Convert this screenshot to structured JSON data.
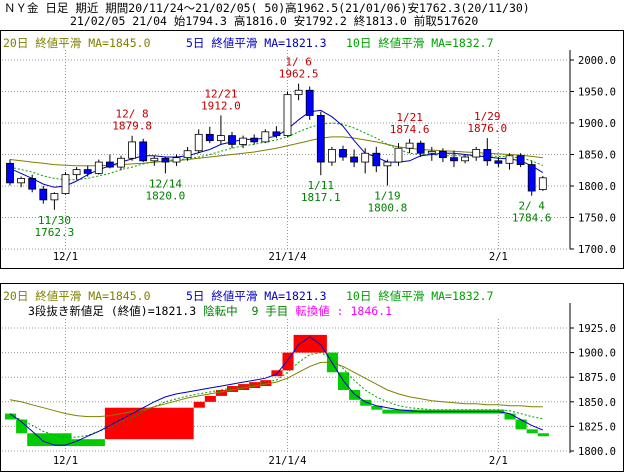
{
  "header": {
    "line1": "ＮＹ金 日足 期近 期間20/11/24～21/02/05( 50)高1962.5(21/01/06)安1762.3(20/11/30)",
    "line2": "21/02/05 21/04 始1794.3 高1816.0 安1792.2 終1813.0 前取517620"
  },
  "colors": {
    "ma20": "#808000",
    "ma5": "#0000c0",
    "ma10": "#00a000",
    "up": "#ffffff",
    "down": "#0000ff",
    "red_label": "#c00000",
    "green_label": "#008000",
    "brick_up": "#ff0000",
    "brick_down": "#00cc00",
    "magenta": "#ff00ff"
  },
  "top_legend": {
    "ma20": "20日 終値平滑 MA=1845.0",
    "ma5": "5日 終値平滑 MA=1821.3",
    "ma10": "10日 終値平滑 MA=1832.7"
  },
  "bottom_legend": {
    "ma20": "20日 終値平滑 MA=1845.0",
    "ma5": "5日 終値平滑 MA=1821.3",
    "ma10": "10日 終値平滑 MA=1832.7",
    "info_a": "3段抜き新値足 (終値)=1821.3 ",
    "info_b": "陰転中",
    "info_c": "  9 手目 ",
    "info_d": "転換値 : 1846.1"
  },
  "chart_data": [
    {
      "type": "candlestick",
      "ylim": [
        1700,
        2000
      ],
      "y_ticks": [
        "2000.0",
        "1950.0",
        "1900.0",
        "1850.0",
        "1800.0",
        "1750.0",
        "1700.0"
      ],
      "x_ticks": [
        {
          "label": "12/1",
          "index": 5
        },
        {
          "label": "21/1/4",
          "index": 25
        },
        {
          "label": "2/1",
          "index": 44
        }
      ],
      "candles": [
        [
          1836,
          1842,
          1801,
          1805
        ],
        [
          1805,
          1815,
          1798,
          1812
        ],
        [
          1812,
          1818,
          1790,
          1795
        ],
        [
          1795,
          1800,
          1772,
          1778
        ],
        [
          1778,
          1790,
          1762.3,
          1788
        ],
        [
          1788,
          1822,
          1786,
          1818
        ],
        [
          1818,
          1830,
          1810,
          1826
        ],
        [
          1826,
          1832,
          1815,
          1820
        ],
        [
          1820,
          1842,
          1818,
          1838
        ],
        [
          1838,
          1850,
          1828,
          1830
        ],
        [
          1830,
          1848,
          1825,
          1844
        ],
        [
          1844,
          1879.8,
          1840,
          1870
        ],
        [
          1870,
          1875,
          1838,
          1840
        ],
        [
          1840,
          1848,
          1832,
          1844
        ],
        [
          1844,
          1846,
          1820,
          1838
        ],
        [
          1838,
          1850,
          1832,
          1845
        ],
        [
          1845,
          1862,
          1840,
          1856
        ],
        [
          1856,
          1890,
          1852,
          1882
        ],
        [
          1882,
          1894,
          1868,
          1872
        ],
        [
          1872,
          1912,
          1866,
          1880
        ],
        [
          1880,
          1886,
          1860,
          1866
        ],
        [
          1866,
          1880,
          1860,
          1876
        ],
        [
          1876,
          1882,
          1866,
          1870
        ],
        [
          1870,
          1890,
          1868,
          1886
        ],
        [
          1886,
          1895,
          1876,
          1880
        ],
        [
          1880,
          1950,
          1878,
          1945
        ],
        [
          1945,
          1962.5,
          1936,
          1952
        ],
        [
          1952,
          1958,
          1905,
          1912
        ],
        [
          1912,
          1918,
          1817.1,
          1838
        ],
        [
          1838,
          1862,
          1832,
          1858
        ],
        [
          1858,
          1864,
          1840,
          1846
        ],
        [
          1846,
          1858,
          1830,
          1838
        ],
        [
          1838,
          1860,
          1820,
          1852
        ],
        [
          1852,
          1862,
          1822,
          1832
        ],
        [
          1832,
          1842,
          1800.8,
          1838
        ],
        [
          1838,
          1868,
          1832,
          1860
        ],
        [
          1860,
          1874.6,
          1852,
          1868
        ],
        [
          1868,
          1872,
          1846,
          1852
        ],
        [
          1852,
          1862,
          1840,
          1855
        ],
        [
          1855,
          1860,
          1838,
          1845
        ],
        [
          1845,
          1856,
          1830,
          1840
        ],
        [
          1840,
          1850,
          1836,
          1846
        ],
        [
          1846,
          1862,
          1840,
          1858
        ],
        [
          1858,
          1876.0,
          1832,
          1840
        ],
        [
          1840,
          1846,
          1830,
          1836
        ],
        [
          1836,
          1852,
          1826,
          1848
        ],
        [
          1848,
          1852,
          1830,
          1834
        ],
        [
          1834,
          1840,
          1784.6,
          1792
        ],
        [
          1794.3,
          1816.0,
          1792.2,
          1813.0
        ]
      ],
      "ma5": [
        1828,
        1820,
        1812,
        1803,
        1798,
        1800,
        1808,
        1818,
        1826,
        1832,
        1838,
        1843,
        1848,
        1848,
        1846,
        1846,
        1848,
        1853,
        1858,
        1866,
        1870,
        1874,
        1874,
        1876,
        1879,
        1890,
        1905,
        1918,
        1920,
        1910,
        1895,
        1872,
        1852,
        1846,
        1838,
        1838,
        1840,
        1848,
        1850,
        1852,
        1852,
        1850,
        1848,
        1846,
        1844,
        1843,
        1840,
        1832,
        1821.3
      ],
      "ma10": [
        1830,
        1826,
        1822,
        1816,
        1812,
        1810,
        1810,
        1812,
        1816,
        1820,
        1826,
        1830,
        1835,
        1838,
        1840,
        1842,
        1843,
        1846,
        1850,
        1855,
        1860,
        1864,
        1866,
        1870,
        1873,
        1878,
        1886,
        1893,
        1898,
        1900,
        1898,
        1892,
        1884,
        1876,
        1866,
        1858,
        1852,
        1850,
        1850,
        1848,
        1848,
        1848,
        1848,
        1848,
        1847,
        1846,
        1845,
        1840,
        1832.7
      ],
      "ma20": [
        1842,
        1840,
        1838,
        1836,
        1834,
        1833,
        1832,
        1832,
        1832,
        1833,
        1834,
        1835,
        1836,
        1838,
        1839,
        1840,
        1842,
        1844,
        1846,
        1848,
        1850,
        1852,
        1854,
        1857,
        1860,
        1864,
        1868,
        1872,
        1876,
        1878,
        1878,
        1876,
        1873,
        1870,
        1866,
        1862,
        1860,
        1858,
        1857,
        1856,
        1855,
        1854,
        1853,
        1852,
        1851,
        1850,
        1849,
        1847,
        1845.0
      ],
      "annotations": [
        {
          "label": "1/ 6",
          "value": "1962.5",
          "index": 26,
          "kind": "high"
        },
        {
          "label": "12/21",
          "value": "1912.0",
          "index": 19,
          "kind": "high"
        },
        {
          "label": "12/ 8",
          "value": "1879.8",
          "index": 11,
          "kind": "high"
        },
        {
          "label": "1/21",
          "value": "1874.6",
          "index": 36,
          "kind": "high"
        },
        {
          "label": "1/29",
          "value": "1876.0",
          "index": 43,
          "kind": "high"
        },
        {
          "label": "11/30",
          "value": "1762.3",
          "index": 4,
          "kind": "low"
        },
        {
          "label": "12/14",
          "value": "1820.0",
          "index": 14,
          "kind": "low"
        },
        {
          "label": "1/11",
          "value": "1817.1",
          "index": 28,
          "kind": "low"
        },
        {
          "label": "1/19",
          "value": "1800.8",
          "index": 34,
          "kind": "low"
        },
        {
          "label": "2/ 4",
          "value": "1784.6",
          "index": 47,
          "kind": "low"
        }
      ]
    },
    {
      "type": "new_price_bricks",
      "ylim": [
        1795,
        1935
      ],
      "y_ticks": [
        "1925.0",
        "1900.0",
        "1875.0",
        "1850.0",
        "1825.0",
        "1800.0"
      ],
      "x_ticks": [
        {
          "label": "12/1",
          "index": 5
        },
        {
          "label": "21/1/4",
          "index": 25
        },
        {
          "label": "2/1",
          "index": 44
        }
      ],
      "bricks": [
        {
          "from": 0,
          "to": 1,
          "lo": 1832,
          "hi": 1838,
          "dir": "down"
        },
        {
          "from": 1,
          "to": 2,
          "lo": 1818,
          "hi": 1832,
          "dir": "down"
        },
        {
          "from": 2,
          "to": 6,
          "lo": 1805,
          "hi": 1818,
          "dir": "down"
        },
        {
          "from": 6,
          "to": 9,
          "lo": 1805,
          "hi": 1812,
          "dir": "down"
        },
        {
          "from": 9,
          "to": 17,
          "lo": 1812,
          "hi": 1844,
          "dir": "up"
        },
        {
          "from": 17,
          "to": 18,
          "lo": 1844,
          "hi": 1850,
          "dir": "up"
        },
        {
          "from": 18,
          "to": 19,
          "lo": 1850,
          "hi": 1856,
          "dir": "up"
        },
        {
          "from": 19,
          "to": 20,
          "lo": 1856,
          "hi": 1862,
          "dir": "up"
        },
        {
          "from": 20,
          "to": 21,
          "lo": 1860,
          "hi": 1866,
          "dir": "up"
        },
        {
          "from": 21,
          "to": 22,
          "lo": 1862,
          "hi": 1868,
          "dir": "up"
        },
        {
          "from": 22,
          "to": 23,
          "lo": 1864,
          "hi": 1870,
          "dir": "up"
        },
        {
          "from": 23,
          "to": 24,
          "lo": 1866,
          "hi": 1872,
          "dir": "up"
        },
        {
          "from": 24,
          "to": 25,
          "lo": 1876,
          "hi": 1882,
          "dir": "up"
        },
        {
          "from": 25,
          "to": 26,
          "lo": 1882,
          "hi": 1900,
          "dir": "up"
        },
        {
          "from": 26,
          "to": 29,
          "lo": 1900,
          "hi": 1918,
          "dir": "up"
        },
        {
          "from": 29,
          "to": 30,
          "lo": 1880,
          "hi": 1900,
          "dir": "down"
        },
        {
          "from": 30,
          "to": 31,
          "lo": 1862,
          "hi": 1880,
          "dir": "down"
        },
        {
          "from": 31,
          "to": 32,
          "lo": 1852,
          "hi": 1862,
          "dir": "down"
        },
        {
          "from": 32,
          "to": 33,
          "lo": 1846,
          "hi": 1852,
          "dir": "down"
        },
        {
          "from": 33,
          "to": 34,
          "lo": 1842,
          "hi": 1846,
          "dir": "down"
        },
        {
          "from": 34,
          "to": 45,
          "lo": 1838,
          "hi": 1842,
          "dir": "down"
        },
        {
          "from": 45,
          "to": 46,
          "lo": 1832,
          "hi": 1838,
          "dir": "down"
        },
        {
          "from": 46,
          "to": 47,
          "lo": 1822,
          "hi": 1832,
          "dir": "down"
        },
        {
          "from": 47,
          "to": 48,
          "lo": 1818,
          "hi": 1822,
          "dir": "down"
        },
        {
          "from": 48,
          "to": 49,
          "lo": 1815,
          "hi": 1818,
          "dir": "down"
        }
      ],
      "ma5": [
        1838,
        1830,
        1820,
        1810,
        1806,
        1806,
        1810,
        1815,
        1820,
        1826,
        1832,
        1838,
        1844,
        1850,
        1855,
        1858,
        1860,
        1862,
        1864,
        1866,
        1868,
        1870,
        1872,
        1874,
        1878,
        1892,
        1908,
        1916,
        1908,
        1890,
        1872,
        1858,
        1850,
        1846,
        1844,
        1842,
        1841,
        1840,
        1840,
        1840,
        1840,
        1840,
        1840,
        1840,
        1840,
        1838,
        1832,
        1826,
        1821.3
      ],
      "ma10": [
        1836,
        1832,
        1826,
        1820,
        1816,
        1814,
        1814,
        1816,
        1820,
        1824,
        1830,
        1834,
        1840,
        1845,
        1850,
        1853,
        1856,
        1858,
        1860,
        1862,
        1864,
        1866,
        1868,
        1870,
        1872,
        1880,
        1890,
        1898,
        1900,
        1894,
        1884,
        1872,
        1862,
        1855,
        1850,
        1846,
        1844,
        1843,
        1842,
        1842,
        1842,
        1842,
        1842,
        1842,
        1842,
        1841,
        1838,
        1835,
        1832.7
      ],
      "ma20": [
        1852,
        1850,
        1847,
        1844,
        1841,
        1838,
        1836,
        1835,
        1835,
        1836,
        1838,
        1840,
        1842,
        1845,
        1848,
        1851,
        1854,
        1856,
        1858,
        1860,
        1862,
        1864,
        1866,
        1868,
        1870,
        1874,
        1880,
        1886,
        1890,
        1890,
        1886,
        1880,
        1874,
        1868,
        1862,
        1858,
        1855,
        1853,
        1851,
        1850,
        1849,
        1848,
        1848,
        1847,
        1847,
        1846,
        1846,
        1845,
        1845.0
      ]
    }
  ]
}
